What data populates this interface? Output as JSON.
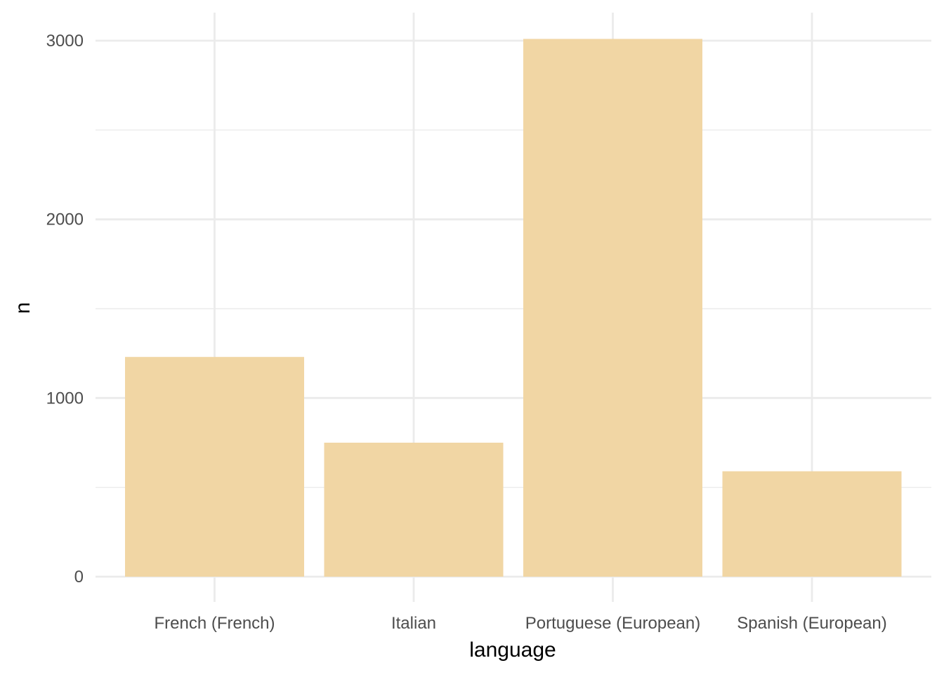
{
  "chart_data": {
    "type": "bar",
    "title": "",
    "xlabel": "language",
    "ylabel": "n",
    "categories": [
      "French (French)",
      "Italian",
      "Portuguese (European)",
      "Spanish (European)"
    ],
    "values": [
      1230,
      750,
      3010,
      590
    ],
    "ylim": [
      0,
      3000
    ],
    "yticks": [
      "0",
      "1000",
      "2000",
      "3000"
    ],
    "grid": true,
    "legend": "none",
    "bar_color": "#F1D6A4",
    "background_color": "#FFFFFF",
    "grid_color": "#EBEBEB"
  }
}
